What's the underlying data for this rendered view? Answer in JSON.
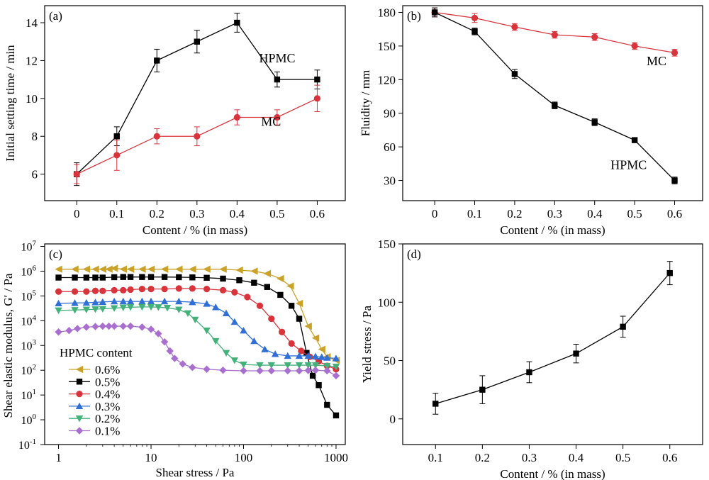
{
  "colors": {
    "black": "#000000",
    "red": "#d9343b",
    "gold": "#c9a227",
    "blue": "#2f6fd6",
    "green": "#44b07a",
    "purple": "#a86fcf",
    "frame": "#000000"
  },
  "chart_data": [
    {
      "panel": "(a)",
      "type": "line",
      "xlabel": "Content / % (in mass)",
      "ylabel": "Initial setting time / min",
      "xlim": [
        -0.08,
        0.67
      ],
      "ylim": [
        4.6,
        14.9
      ],
      "xticks": [
        0,
        0.1,
        0.2,
        0.3,
        0.4,
        0.5,
        0.6
      ],
      "yticks": [
        6,
        8,
        10,
        12,
        14
      ],
      "series": [
        {
          "name": "HPMC",
          "color": "black",
          "marker": "square",
          "x": [
            0,
            0.1,
            0.2,
            0.3,
            0.4,
            0.5,
            0.6
          ],
          "y": [
            6,
            8,
            12,
            13,
            14,
            11,
            11
          ],
          "err": [
            0.6,
            0.5,
            0.6,
            0.6,
            0.5,
            0.4,
            0.5
          ],
          "label_at": [
            0.455,
            11.9
          ]
        },
        {
          "name": "MC",
          "color": "red",
          "marker": "circle",
          "x": [
            0,
            0.1,
            0.2,
            0.3,
            0.4,
            0.5,
            0.6
          ],
          "y": [
            6,
            7,
            8,
            8,
            9,
            9,
            10
          ],
          "err": [
            0.5,
            0.8,
            0.4,
            0.5,
            0.4,
            0.4,
            0.7
          ],
          "label_at": [
            0.46,
            8.55
          ]
        }
      ]
    },
    {
      "panel": "(b)",
      "type": "line",
      "xlabel": "Content / % (in mass)",
      "ylabel": "Fluidity / mm",
      "xlim": [
        -0.08,
        0.67
      ],
      "ylim": [
        12,
        186
      ],
      "xticks": [
        0,
        0.1,
        0.2,
        0.3,
        0.4,
        0.5,
        0.6
      ],
      "yticks": [
        30,
        60,
        90,
        120,
        150,
        180
      ],
      "series": [
        {
          "name": "MC",
          "color": "red",
          "marker": "circle",
          "x": [
            0,
            0.1,
            0.2,
            0.3,
            0.4,
            0.5,
            0.6
          ],
          "y": [
            180,
            175,
            167,
            160,
            158,
            150,
            144
          ],
          "err": [
            4,
            4,
            3,
            3,
            3,
            3,
            3
          ],
          "label_at": [
            0.53,
            133
          ]
        },
        {
          "name": "HPMC",
          "color": "black",
          "marker": "square",
          "x": [
            0,
            0.1,
            0.2,
            0.3,
            0.4,
            0.5,
            0.6
          ],
          "y": [
            180,
            163,
            125,
            97,
            82,
            66,
            30
          ],
          "err": [
            4,
            3,
            4,
            3,
            3,
            2,
            3
          ],
          "label_at": [
            0.44,
            40
          ]
        }
      ]
    },
    {
      "panel": "(c)",
      "type": "line",
      "xscale": "log",
      "yscale": "log",
      "xlabel": "Shear stress / Pa",
      "ylabel": "Shear elastic modulus, G′ / Pa",
      "xlim_log10": [
        -0.15,
        3.1
      ],
      "ylim_log10": [
        -1,
        7.1
      ],
      "xticks": [
        1,
        10,
        100,
        1000
      ],
      "xtick_labels": [
        "1",
        "10",
        "100",
        "1000"
      ],
      "yticks_exp": [
        -1,
        0,
        1,
        2,
        3,
        4,
        5,
        6,
        7
      ],
      "legend_title": "HPMC content",
      "series": [
        {
          "name": "0.6%",
          "color": "gold",
          "marker": "triangle-left",
          "x": [
            1,
            1.5,
            2,
            2.5,
            3,
            3.5,
            4,
            5,
            6,
            8,
            10,
            14,
            20,
            28,
            40,
            60,
            90,
            130,
            180,
            250,
            320,
            400,
            500,
            600,
            700,
            800,
            1000
          ],
          "y": [
            1200000.0,
            1200000.0,
            1200000.0,
            1200000.0,
            1200000.0,
            1200000.0,
            1300000.0,
            1200000.0,
            1200000.0,
            1200000.0,
            1200000.0,
            1200000.0,
            1200000.0,
            1200000.0,
            1200000.0,
            1200000.0,
            1100000.0,
            1000000.0,
            800000.0,
            500000.0,
            250000.0,
            50000.0,
            6000,
            2000,
            700,
            350,
            250
          ]
        },
        {
          "name": "0.5%",
          "color": "black",
          "marker": "square",
          "x": [
            1,
            1.5,
            2,
            2.5,
            3,
            4,
            5,
            6,
            8,
            10,
            14,
            20,
            28,
            40,
            60,
            90,
            130,
            180,
            250,
            330,
            400,
            480,
            560,
            650,
            800,
            1000
          ],
          "y": [
            550000.0,
            550000.0,
            550000.0,
            550000.0,
            550000.0,
            570000.0,
            580000.0,
            580000.0,
            580000.0,
            580000.0,
            580000.0,
            570000.0,
            560000.0,
            540000.0,
            500000.0,
            430000.0,
            340000.0,
            230000.0,
            110000.0,
            40000.0,
            12000.0,
            500,
            60,
            25,
            4,
            1.5
          ]
        },
        {
          "name": "0.4%",
          "color": "red",
          "marker": "circle",
          "x": [
            1,
            1.5,
            2,
            2.5,
            3,
            4,
            5,
            6,
            8,
            10,
            14,
            20,
            28,
            40,
            60,
            80,
            110,
            150,
            200,
            260,
            330,
            420,
            520,
            650,
            800,
            1000
          ],
          "y": [
            150000.0,
            150000.0,
            150000.0,
            160000.0,
            160000.0,
            170000.0,
            170000.0,
            180000.0,
            190000.0,
            190000.0,
            190000.0,
            200000.0,
            200000.0,
            190000.0,
            170000.0,
            140000.0,
            90000.0,
            40000.0,
            12000.0,
            3500,
            1200,
            600,
            350,
            230,
            150,
            110
          ]
        },
        {
          "name": "0.3%",
          "color": "blue",
          "marker": "triangle-up",
          "x": [
            1,
            1.5,
            2,
            2.5,
            3,
            4,
            5,
            6,
            8,
            10,
            14,
            20,
            28,
            40,
            50,
            65,
            80,
            100,
            130,
            170,
            220,
            300,
            400,
            500,
            600,
            700,
            800,
            1000
          ],
          "y": [
            50000.0,
            52000.0,
            53000.0,
            55000.0,
            57000.0,
            60000.0,
            60000.0,
            60000.0,
            60000.0,
            60000.0,
            60000.0,
            60000.0,
            56000.0,
            48000.0,
            35000.0,
            20000.0,
            9000,
            4000,
            1500,
            700,
            450,
            380,
            380,
            380,
            360,
            340,
            320,
            300
          ]
        },
        {
          "name": "0.2%",
          "color": "green",
          "marker": "triangle-down",
          "x": [
            1,
            1.5,
            2,
            2.5,
            3,
            4,
            5,
            6,
            8,
            10,
            12,
            15,
            20,
            25,
            30,
            40,
            50,
            65,
            80,
            100,
            150,
            200,
            300,
            400,
            500,
            600,
            800,
            1000
          ],
          "y": [
            26000.0,
            27000.0,
            28000.0,
            29000.0,
            30000.0,
            32000.0,
            34000.0,
            35000.0,
            36000.0,
            36000.0,
            35000.0,
            33000.0,
            28000.0,
            20000.0,
            11000.0,
            4000,
            1500,
            500,
            250,
            170,
            160,
            160,
            160,
            160,
            160,
            160,
            150,
            140
          ]
        },
        {
          "name": "0.1%",
          "color": "purple",
          "marker": "diamond",
          "x": [
            1,
            1.3,
            1.6,
            2,
            2.5,
            3,
            3.5,
            4,
            5,
            6,
            8,
            10,
            12,
            14,
            16,
            18,
            22,
            28,
            40,
            60,
            100,
            150,
            200,
            300,
            400,
            500,
            600,
            800,
            1000
          ],
          "y": [
            3500,
            4000,
            4800,
            5500,
            5800,
            6000,
            6000,
            6000,
            6000,
            6000,
            5500,
            4500,
            3000,
            1400,
            600,
            300,
            180,
            130,
            110,
            100,
            95,
            95,
            95,
            95,
            95,
            98,
            100,
            95,
            60
          ]
        }
      ]
    },
    {
      "panel": "(d)",
      "type": "line",
      "xlabel": "Content / % (in mass)",
      "ylabel": "Yield stress / Pa",
      "xlim": [
        0.03,
        0.67
      ],
      "ylim": [
        -22,
        150
      ],
      "xticks": [
        0.1,
        0.2,
        0.3,
        0.4,
        0.5,
        0.6
      ],
      "yticks": [
        0,
        50,
        100,
        150
      ],
      "series": [
        {
          "color": "black",
          "marker": "square",
          "x": [
            0.1,
            0.2,
            0.3,
            0.4,
            0.5,
            0.6
          ],
          "y": [
            13,
            25,
            40,
            56,
            79,
            125
          ],
          "err": [
            9,
            12,
            9,
            8,
            9,
            10
          ]
        }
      ]
    }
  ]
}
